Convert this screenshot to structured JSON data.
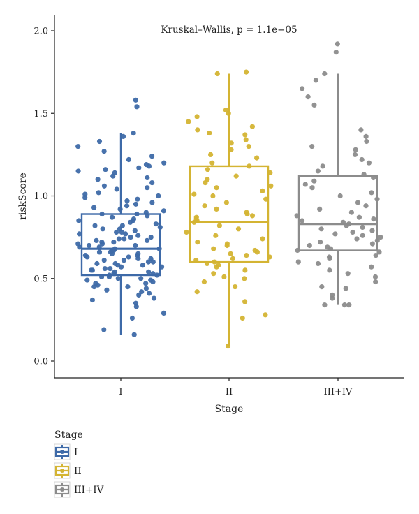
{
  "chart_data": {
    "type": "boxplot",
    "annotation": "Kruskal–Wallis, p = 1.1e−05",
    "xlabel": "Stage",
    "ylabel": "riskScore",
    "ylim": [
      -0.1,
      2.1
    ],
    "yticks": [
      0.0,
      0.5,
      1.0,
      1.5,
      2.0
    ],
    "ytick_labels": [
      "0.0",
      "0.5",
      "1.0",
      "1.5",
      "2.0"
    ],
    "grid": false,
    "legend": {
      "title": "Stage",
      "position": "bottom-left",
      "entries": [
        "I",
        "II",
        "III+IV"
      ]
    },
    "groups": [
      {
        "name": "I",
        "color": "#3e6aa8",
        "box": {
          "q1": 0.52,
          "median": 0.68,
          "q3": 0.89,
          "whisker_low": 0.16,
          "whisker_high": 1.38
        },
        "points": [
          0.16,
          0.19,
          0.26,
          0.29,
          0.33,
          0.35,
          0.37,
          0.38,
          0.4,
          0.41,
          0.42,
          0.43,
          0.44,
          0.45,
          0.45,
          0.46,
          0.47,
          0.47,
          0.48,
          0.49,
          0.49,
          0.5,
          0.5,
          0.51,
          0.51,
          0.52,
          0.52,
          0.53,
          0.53,
          0.54,
          0.54,
          0.55,
          0.55,
          0.56,
          0.56,
          0.57,
          0.57,
          0.58,
          0.58,
          0.59,
          0.59,
          0.6,
          0.6,
          0.61,
          0.61,
          0.62,
          0.62,
          0.63,
          0.63,
          0.64,
          0.64,
          0.65,
          0.65,
          0.66,
          0.66,
          0.67,
          0.67,
          0.68,
          0.68,
          0.69,
          0.69,
          0.7,
          0.7,
          0.71,
          0.71,
          0.72,
          0.72,
          0.73,
          0.73,
          0.74,
          0.74,
          0.75,
          0.75,
          0.76,
          0.77,
          0.77,
          0.78,
          0.78,
          0.79,
          0.8,
          0.8,
          0.81,
          0.82,
          0.82,
          0.83,
          0.84,
          0.85,
          0.85,
          0.86,
          0.87,
          0.88,
          0.89,
          0.89,
          0.9,
          0.91,
          0.92,
          0.93,
          0.94,
          0.95,
          0.96,
          0.97,
          0.98,
          0.99,
          1.0,
          1.01,
          1.02,
          1.04,
          1.05,
          1.06,
          1.08,
          1.1,
          1.11,
          1.12,
          1.14,
          1.15,
          1.16,
          1.17,
          1.18,
          1.19,
          1.2,
          1.22,
          1.24,
          1.27,
          1.3,
          1.33,
          1.36,
          1.38,
          1.54,
          1.58
        ]
      },
      {
        "name": "II",
        "color": "#d4b433",
        "box": {
          "q1": 0.6,
          "median": 0.84,
          "q3": 1.18,
          "whisker_low": 0.09,
          "whisker_high": 1.74
        },
        "points": [
          0.09,
          0.26,
          0.28,
          0.36,
          0.42,
          0.45,
          0.48,
          0.5,
          0.51,
          0.53,
          0.55,
          0.57,
          0.58,
          0.59,
          0.6,
          0.61,
          0.62,
          0.63,
          0.64,
          0.65,
          0.66,
          0.67,
          0.68,
          0.7,
          0.71,
          0.72,
          0.74,
          0.76,
          0.78,
          0.8,
          0.82,
          0.84,
          0.85,
          0.86,
          0.87,
          0.88,
          0.89,
          0.9,
          0.92,
          0.94,
          0.96,
          0.98,
          1.0,
          1.01,
          1.03,
          1.05,
          1.06,
          1.08,
          1.1,
          1.12,
          1.14,
          1.16,
          1.18,
          1.2,
          1.23,
          1.25,
          1.28,
          1.3,
          1.32,
          1.34,
          1.37,
          1.38,
          1.4,
          1.42,
          1.45,
          1.48,
          1.5,
          1.52,
          1.74,
          1.75
        ]
      },
      {
        "name": "III+IV",
        "color": "#8c8c8c",
        "box": {
          "q1": 0.67,
          "median": 0.83,
          "q3": 1.12,
          "whisker_low": 0.34,
          "whisker_high": 1.74
        },
        "points": [
          0.34,
          0.34,
          0.34,
          0.38,
          0.4,
          0.44,
          0.45,
          0.48,
          0.51,
          0.53,
          0.55,
          0.57,
          0.59,
          0.6,
          0.62,
          0.63,
          0.64,
          0.66,
          0.67,
          0.68,
          0.69,
          0.7,
          0.71,
          0.72,
          0.73,
          0.74,
          0.75,
          0.76,
          0.77,
          0.78,
          0.79,
          0.8,
          0.81,
          0.82,
          0.83,
          0.84,
          0.85,
          0.86,
          0.87,
          0.88,
          0.9,
          0.92,
          0.94,
          0.96,
          0.98,
          1.0,
          1.02,
          1.05,
          1.07,
          1.09,
          1.11,
          1.13,
          1.15,
          1.18,
          1.2,
          1.22,
          1.25,
          1.28,
          1.3,
          1.33,
          1.36,
          1.4,
          1.55,
          1.6,
          1.65,
          1.7,
          1.74,
          1.87,
          1.92
        ]
      }
    ]
  }
}
